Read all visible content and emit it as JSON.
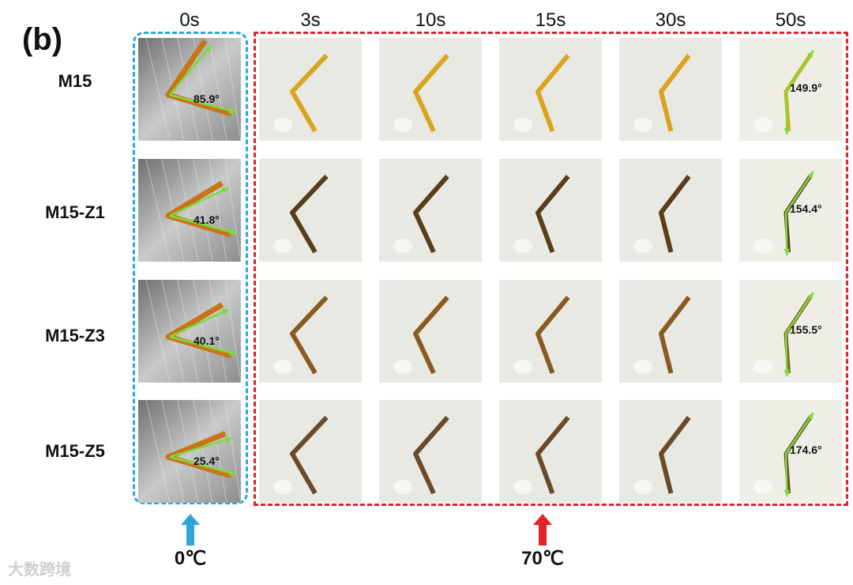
{
  "panel_label": "(b)",
  "time_headers": [
    "0s",
    "3s",
    "10s",
    "15s",
    "30s",
    "50s"
  ],
  "samples": [
    {
      "name": "M15",
      "angle_0s": "85.9°",
      "angle_50s": "149.9°",
      "color": "#d9a520"
    },
    {
      "name": "M15-Z1",
      "angle_0s": "41.8°",
      "angle_50s": "154.4°",
      "color": "#5a3e1a"
    },
    {
      "name": "M15-Z3",
      "angle_0s": "40.1°",
      "angle_50s": "155.5°",
      "color": "#8a5a20"
    },
    {
      "name": "M15-Z5",
      "angle_0s": "25.4°",
      "angle_50s": "174.6°",
      "color": "#6b4a2a"
    }
  ],
  "temperatures": {
    "cold": "0℃",
    "hot": "70℃"
  },
  "colors": {
    "cold_box": "#2aa8dc",
    "hot_box": "#e0242a",
    "angle_arrow": "#7ddc3c"
  },
  "watermark": "大数跨境"
}
